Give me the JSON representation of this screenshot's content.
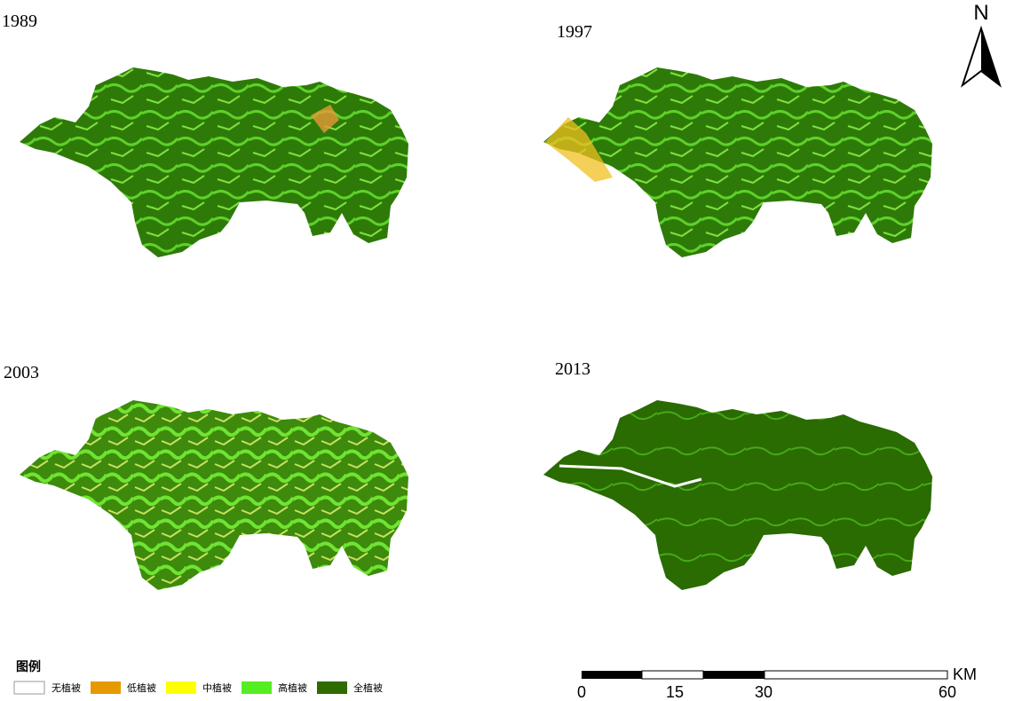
{
  "panels": [
    {
      "year": "1989"
    },
    {
      "year": "1997"
    },
    {
      "year": "2003"
    },
    {
      "year": "2013"
    }
  ],
  "legend": {
    "title": "图例",
    "items": [
      "无植被",
      "低植被",
      "中植被",
      "高植被",
      "全植被"
    ]
  },
  "scale_bar": {
    "labels": [
      "0",
      "15",
      "30",
      "60"
    ],
    "unit": "KM"
  },
  "north": "N"
}
